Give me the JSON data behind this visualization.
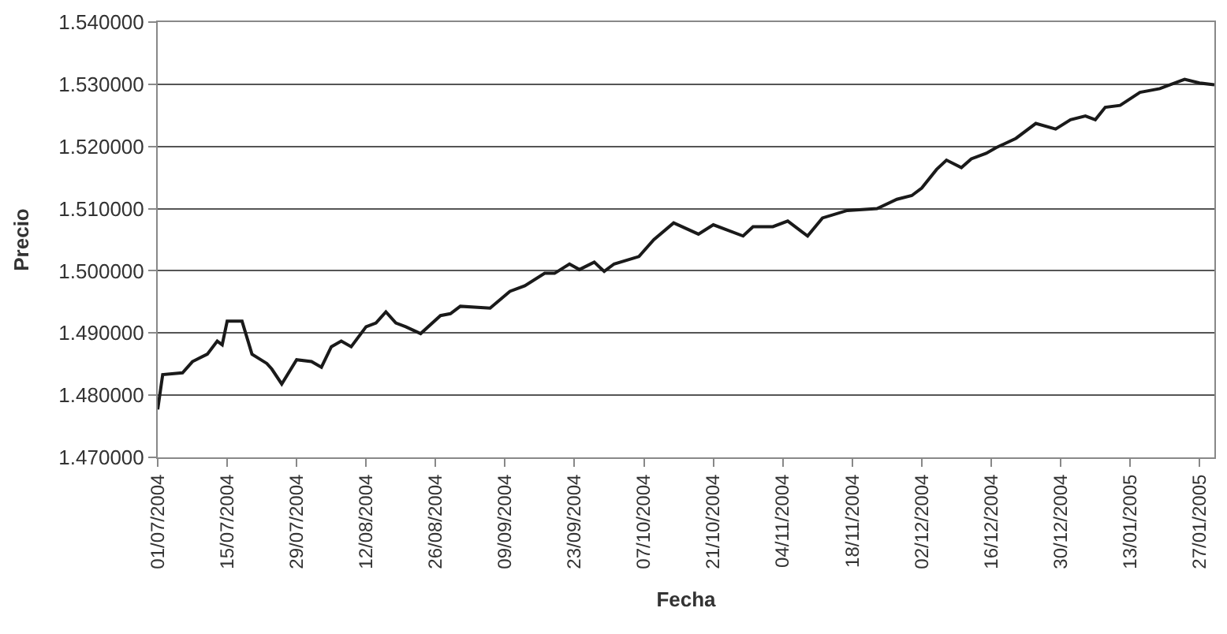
{
  "chart_data": {
    "type": "line",
    "xlabel": "Fecha",
    "ylabel": "Precio",
    "grid": "y",
    "marker": "none",
    "line_style": "solid",
    "x": [
      "2004-07-01",
      "2004-07-02",
      "2004-07-06",
      "2004-07-08",
      "2004-07-11",
      "2004-07-13",
      "2004-07-14",
      "2004-07-15",
      "2004-07-18",
      "2004-07-20",
      "2004-07-23",
      "2004-07-24",
      "2004-07-26",
      "2004-07-29",
      "2004-08-01",
      "2004-08-03",
      "2004-08-05",
      "2004-08-07",
      "2004-08-09",
      "2004-08-12",
      "2004-08-14",
      "2004-08-16",
      "2004-08-18",
      "2004-08-20",
      "2004-08-23",
      "2004-08-27",
      "2004-08-29",
      "2004-08-31",
      "2004-09-06",
      "2004-09-10",
      "2004-09-13",
      "2004-09-17",
      "2004-09-19",
      "2004-09-22",
      "2004-09-24",
      "2004-09-27",
      "2004-09-29",
      "2004-10-01",
      "2004-10-06",
      "2004-10-09",
      "2004-10-13",
      "2004-10-18",
      "2004-10-21",
      "2004-10-27",
      "2004-10-29",
      "2004-11-02",
      "2004-11-05",
      "2004-11-09",
      "2004-11-12",
      "2004-11-17",
      "2004-11-23",
      "2004-11-27",
      "2004-11-30",
      "2004-12-02",
      "2004-12-05",
      "2004-12-07",
      "2004-12-10",
      "2004-12-12",
      "2004-12-15",
      "2004-12-17",
      "2004-12-21",
      "2004-12-25",
      "2004-12-29",
      "2005-01-01",
      "2005-01-04",
      "2005-01-06",
      "2005-01-08",
      "2005-01-11",
      "2005-01-15",
      "2005-01-19",
      "2005-01-21",
      "2005-01-24",
      "2005-01-27",
      "2005-01-30"
    ],
    "series": [
      {
        "color": "#1a1a1a",
        "values": [
          1.4777,
          1.4833,
          1.4836,
          1.4854,
          1.4866,
          1.4887,
          1.4881,
          1.4919,
          1.4919,
          1.4866,
          1.4851,
          1.4842,
          1.4818,
          1.4857,
          1.4854,
          1.4845,
          1.4878,
          1.4887,
          1.4878,
          1.491,
          1.4916,
          1.4934,
          1.4916,
          1.491,
          1.4899,
          1.4928,
          1.4931,
          1.4943,
          1.494,
          1.4967,
          1.4976,
          1.4996,
          1.4996,
          1.5011,
          1.5002,
          1.5014,
          1.4999,
          1.5011,
          1.5023,
          1.505,
          1.5077,
          1.5059,
          1.5074,
          1.5056,
          1.5071,
          1.5071,
          1.508,
          1.5056,
          1.5085,
          1.5097,
          1.51,
          1.5115,
          1.5121,
          1.5133,
          1.5163,
          1.5178,
          1.5166,
          1.518,
          1.5189,
          1.5198,
          1.5213,
          1.5237,
          1.5228,
          1.5243,
          1.5249,
          1.5243,
          1.5263,
          1.5266,
          1.5287,
          1.5293,
          1.5299,
          1.5308,
          1.5302,
          1.5299
        ]
      }
    ],
    "xlim": [
      "2004-07-01",
      "2005-01-30"
    ],
    "xticks": [
      {
        "value": "2004-07-01",
        "label": "01/07/2004"
      },
      {
        "value": "2004-07-15",
        "label": "15/07/2004"
      },
      {
        "value": "2004-07-29",
        "label": "29/07/2004"
      },
      {
        "value": "2004-08-12",
        "label": "12/08/2004"
      },
      {
        "value": "2004-08-26",
        "label": "26/08/2004"
      },
      {
        "value": "2004-09-09",
        "label": "09/09/2004"
      },
      {
        "value": "2004-09-23",
        "label": "23/09/2004"
      },
      {
        "value": "2004-10-07",
        "label": "07/10/2004"
      },
      {
        "value": "2004-10-21",
        "label": "21/10/2004"
      },
      {
        "value": "2004-11-04",
        "label": "04/11/2004"
      },
      {
        "value": "2004-11-18",
        "label": "18/11/2004"
      },
      {
        "value": "2004-12-02",
        "label": "02/12/2004"
      },
      {
        "value": "2004-12-16",
        "label": "16/12/2004"
      },
      {
        "value": "2004-12-30",
        "label": "30/12/2004"
      },
      {
        "value": "2005-01-13",
        "label": "13/01/2005"
      },
      {
        "value": "2005-01-27",
        "label": "27/01/2005"
      }
    ],
    "ylim": [
      1.47,
      1.54
    ],
    "yticks": [
      {
        "value": 1.47,
        "label": "1.470000"
      },
      {
        "value": 1.48,
        "label": "1.480000"
      },
      {
        "value": 1.49,
        "label": "1.490000"
      },
      {
        "value": 1.5,
        "label": "1.500000"
      },
      {
        "value": 1.51,
        "label": "1.510000"
      },
      {
        "value": 1.52,
        "label": "1.520000"
      },
      {
        "value": 1.53,
        "label": "1.530000"
      },
      {
        "value": 1.54,
        "label": "1.540000"
      }
    ]
  }
}
